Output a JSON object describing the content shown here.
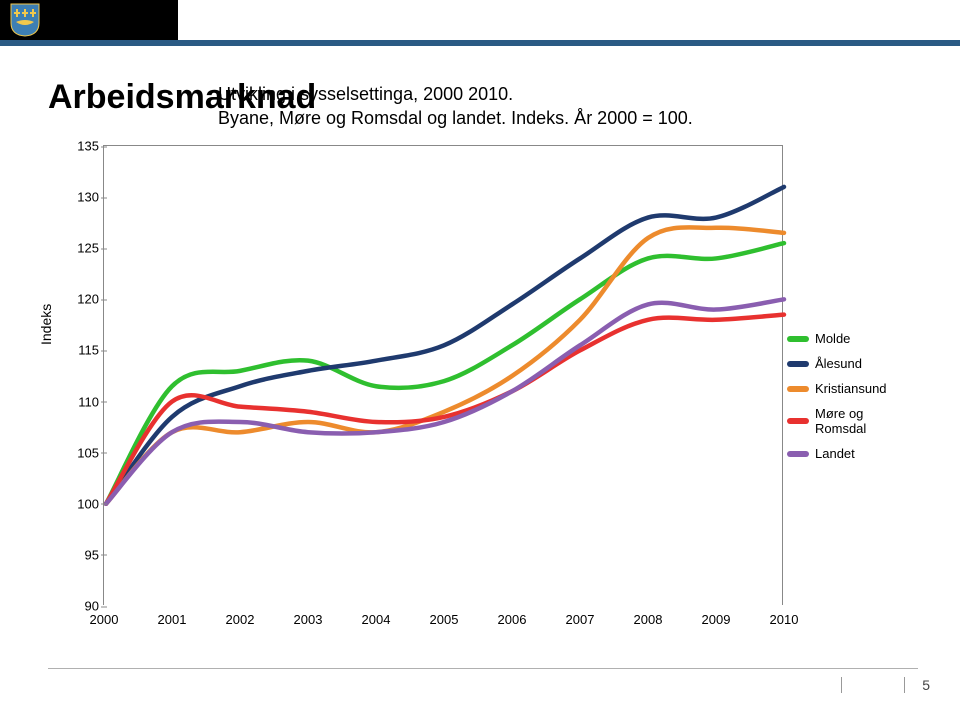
{
  "header": {
    "bg_black": "#000000",
    "strip_color": "#2a5a84",
    "shield_bg": "#3d7fb3",
    "shield_cross": "#f2c94c"
  },
  "title": "Arbeidsmarknad",
  "subtitle_line1": "Utvikling i sysselsettinga, 2000  2010.",
  "subtitle_line2": "Byane, Møre og Romsdal og landet. Indeks. År 2000 = 100.",
  "chart": {
    "type": "line",
    "ylabel": "Indeks",
    "ylim": [
      90,
      135
    ],
    "ytick_step": 5,
    "yticks": [
      90,
      95,
      100,
      105,
      110,
      115,
      120,
      125,
      130,
      135
    ],
    "xlim": [
      2000,
      2010
    ],
    "xticks": [
      2000,
      2001,
      2002,
      2003,
      2004,
      2005,
      2006,
      2007,
      2008,
      2009,
      2010
    ],
    "background_color": "#ffffff",
    "axis_color": "#888888",
    "line_width": 4.5,
    "label_fontsize": 13,
    "ylabel_fontsize": 14,
    "series": [
      {
        "name": "Molde",
        "color": "#2fbf2f",
        "values": [
          100,
          111.5,
          113,
          114,
          111.5,
          112,
          115.5,
          120,
          124,
          124,
          125.5
        ]
      },
      {
        "name": "Ålesund",
        "color": "#1f3a6e",
        "values": [
          100,
          108.5,
          111.5,
          113,
          114,
          115.5,
          119.5,
          124,
          128,
          128,
          131
        ]
      },
      {
        "name": "Kristiansund",
        "color": "#ed8b2d",
        "values": [
          100,
          107,
          107,
          108,
          107,
          109,
          112.5,
          118,
          126,
          127,
          126.5
        ]
      },
      {
        "name": "Møre og Romsdal",
        "color": "#e8312f",
        "values": [
          100,
          110,
          109.5,
          109,
          108,
          108.5,
          111,
          115,
          118,
          118,
          118.5
        ]
      },
      {
        "name": "Landet",
        "color": "#8a5eb0",
        "values": [
          100,
          107,
          108,
          107,
          107,
          108,
          111,
          115.5,
          119.5,
          119,
          120
        ]
      }
    ]
  },
  "footer": {
    "page_number": "5"
  }
}
